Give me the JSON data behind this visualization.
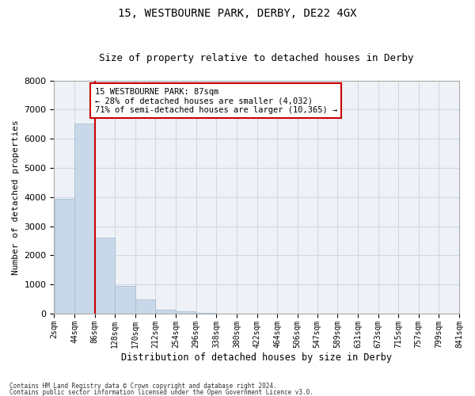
{
  "title_line1": "15, WESTBOURNE PARK, DERBY, DE22 4GX",
  "title_line2": "Size of property relative to detached houses in Derby",
  "xlabel": "Distribution of detached houses by size in Derby",
  "ylabel": "Number of detached properties",
  "bin_edges": [
    2,
    44,
    86,
    128,
    170,
    212,
    254,
    296,
    338,
    380,
    422,
    464,
    506,
    547,
    589,
    631,
    673,
    715,
    757,
    799,
    841
  ],
  "bar_heights": [
    3950,
    6520,
    2600,
    950,
    500,
    125,
    90,
    25,
    10,
    5,
    3,
    2,
    1,
    1,
    0,
    0,
    0,
    0,
    0,
    0
  ],
  "bar_color": "#c8d8e8",
  "bar_edgecolor": "#a0b8cc",
  "property_size": 87,
  "property_label": "15 WESTBOURNE PARK: 87sqm",
  "annotation_line1": "← 28% of detached houses are smaller (4,032)",
  "annotation_line2": "71% of semi-detached houses are larger (10,365) →",
  "vline_color": "#cc0000",
  "annotation_box_color": "#cc0000",
  "ylim": [
    0,
    8000
  ],
  "yticks": [
    0,
    1000,
    2000,
    3000,
    4000,
    5000,
    6000,
    7000,
    8000
  ],
  "grid_color": "#d0d8e8",
  "footnote1": "Contains HM Land Registry data © Crown copyright and database right 2024.",
  "footnote2": "Contains public sector information licensed under the Open Government Licence v3.0.",
  "bg_color": "#eef2f7",
  "title_fontsize": 10,
  "subtitle_fontsize": 9,
  "tick_label_fontsize": 7,
  "ylabel_fontsize": 8,
  "xlabel_fontsize": 8.5
}
